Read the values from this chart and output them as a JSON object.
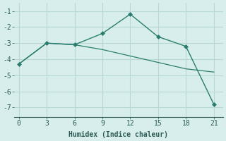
{
  "line1_x": [
    0,
    3,
    6,
    9,
    12,
    15,
    18,
    21
  ],
  "line1_y": [
    -4.3,
    -3.0,
    -3.1,
    -2.4,
    -1.2,
    -2.6,
    -3.2,
    -6.8
  ],
  "line2_x": [
    0,
    3,
    6,
    9,
    12,
    15,
    18,
    21
  ],
  "line2_y": [
    -4.3,
    -3.0,
    -3.1,
    -3.4,
    -3.8,
    -4.2,
    -4.6,
    -4.8
  ],
  "line_color": "#2a7d6e",
  "bg_color": "#d8eeec",
  "grid_color": "#b8d8d4",
  "xlabel": "Humidex (Indice chaleur)",
  "xlim": [
    -0.5,
    22
  ],
  "ylim": [
    -7.6,
    -0.5
  ],
  "xticks": [
    0,
    3,
    6,
    9,
    12,
    15,
    18,
    21
  ],
  "yticks": [
    -7,
    -6,
    -5,
    -4,
    -3,
    -2,
    -1
  ],
  "font_color": "#2a5a55",
  "tick_fontsize": 7,
  "label_fontsize": 7
}
